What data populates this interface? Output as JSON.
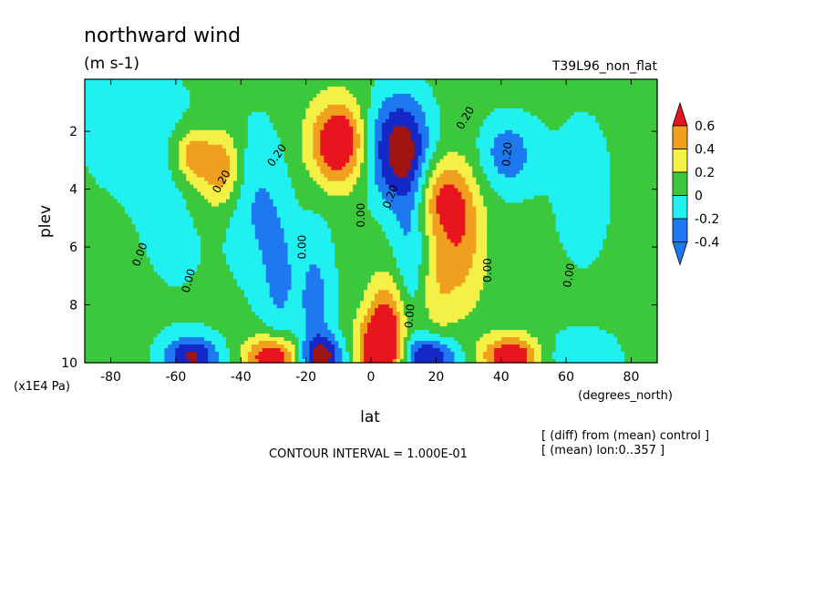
{
  "chart_data": {
    "type": "heatmap",
    "title": "northward wind",
    "subtitle": "(m s-1)",
    "dataset_label": "T39L96_non_flat",
    "xlabel": "lat",
    "x_units": "(degrees_north)",
    "ylabel": "plev",
    "y_units": "(x1E4 Pa)",
    "xlim": [
      -88,
      88
    ],
    "ylim": [
      10,
      0.2
    ],
    "x_ticks": [
      -80,
      -60,
      -40,
      -20,
      0,
      20,
      40,
      60,
      80
    ],
    "x_tick_labels": [
      "-80",
      "-60",
      "-40",
      "-20",
      "0",
      "20",
      "40",
      "60",
      "80"
    ],
    "y_ticks": [
      2,
      4,
      6,
      8,
      10
    ],
    "y_tick_labels": [
      "2",
      "4",
      "6",
      "8",
      "10"
    ],
    "colorbar": {
      "labels": [
        "0.6",
        "0.4",
        "0.2",
        "0",
        "-0.2",
        "-0.4"
      ],
      "levels": [
        0.6,
        0.4,
        0.2,
        0,
        -0.2,
        -0.4
      ],
      "colors": [
        "#e8141e",
        "#f0a01e",
        "#f5f046",
        "#3cc83c",
        "#20f0f0",
        "#1e78f0",
        "#1428c8",
        "#a01414"
      ]
    },
    "contour_labels": [
      "0.20",
      "0.20",
      "0.00",
      "0.00",
      "0.00",
      "0.20",
      "0.00",
      "0.20",
      "0.00",
      "0.20",
      "0.00",
      "0.00"
    ],
    "contour_interval_text": "CONTOUR INTERVAL = 1.000E-01",
    "notes": [
      "[ (diff) from (mean) control ]",
      "[ (mean) lon:0..357 ]"
    ],
    "blobs": [
      {
        "lat": -55,
        "p": 2.8,
        "v": 0.45,
        "sx": 4,
        "sy": 0.6
      },
      {
        "lat": -45,
        "p": 3.2,
        "v": 0.35,
        "sx": 4,
        "sy": 0.9
      },
      {
        "lat": -50,
        "p": 3.5,
        "v": 0.25,
        "sx": 5,
        "sy": 1.0
      },
      {
        "lat": -35,
        "p": 4.5,
        "v": -0.28,
        "sx": 6,
        "sy": 2.0
      },
      {
        "lat": -28,
        "p": 7.2,
        "v": -0.28,
        "sx": 4,
        "sy": 1.8
      },
      {
        "lat": -10,
        "p": 2.4,
        "v": 0.85,
        "sx": 6,
        "sy": 1.0
      },
      {
        "lat": -17,
        "p": 8.0,
        "v": -0.35,
        "sx": 4,
        "sy": 2.0
      },
      {
        "lat": 8,
        "p": 2.6,
        "v": -0.75,
        "sx": 7,
        "sy": 1.3
      },
      {
        "lat": 12,
        "p": 5.5,
        "v": -0.3,
        "sx": 4,
        "sy": 2.5
      },
      {
        "lat": 22,
        "p": 4.3,
        "v": 0.55,
        "sx": 6,
        "sy": 1.0
      },
      {
        "lat": 28,
        "p": 6.0,
        "v": 0.4,
        "sx": 5,
        "sy": 1.5
      },
      {
        "lat": 20,
        "p": 7.5,
        "v": 0.25,
        "sx": 4,
        "sy": 1.2
      },
      {
        "lat": 42,
        "p": 2.8,
        "v": -0.4,
        "sx": 6,
        "sy": 0.9
      },
      {
        "lat": -60,
        "p": 4.0,
        "v": -0.15,
        "sx": 10,
        "sy": 3.0
      },
      {
        "lat": 65,
        "p": 4.0,
        "v": -0.12,
        "sx": 10,
        "sy": 3.0
      },
      {
        "lat": -80,
        "p": 1.5,
        "v": -0.15,
        "sx": 10,
        "sy": 2.0
      },
      {
        "lat": -55,
        "p": 9.8,
        "v": -0.7,
        "sx": 6,
        "sy": 0.5
      },
      {
        "lat": -30,
        "p": 9.8,
        "v": 0.8,
        "sx": 6,
        "sy": 0.5
      },
      {
        "lat": -15,
        "p": 9.8,
        "v": -0.65,
        "sx": 5,
        "sy": 0.5
      },
      {
        "lat": 3,
        "p": 9.6,
        "v": 0.9,
        "sx": 5,
        "sy": 0.9
      },
      {
        "lat": 5,
        "p": 8.2,
        "v": 0.4,
        "sx": 4,
        "sy": 1.0
      },
      {
        "lat": 18,
        "p": 9.8,
        "v": -0.7,
        "sx": 6,
        "sy": 0.5
      },
      {
        "lat": 43,
        "p": 9.8,
        "v": 0.8,
        "sx": 6,
        "sy": 0.5
      },
      {
        "lat": 65,
        "p": 9.8,
        "v": -0.25,
        "sx": 8,
        "sy": 0.6
      }
    ]
  }
}
